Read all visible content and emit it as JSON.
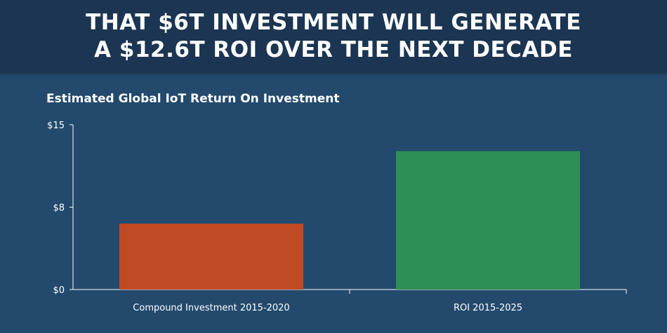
{
  "header": {
    "line1": "THAT $6T INVESTMENT WILL GENERATE",
    "line2": "A $12.6T ROI OVER THE NEXT DECADE"
  },
  "chart_data": {
    "type": "bar",
    "title": "Estimated Global IoT Return On Investment",
    "xlabel": "",
    "ylabel": "",
    "categories": [
      "Compound Investment 2015-2020",
      "ROI 2015-2025"
    ],
    "values": [
      6,
      12.6
    ],
    "bar_colors": [
      "#c04a23",
      "#2e8f54"
    ],
    "ylim": [
      0,
      15
    ],
    "yticks": [
      0,
      7.5,
      15
    ],
    "ytick_labels": [
      "$0",
      "$8",
      "$15"
    ],
    "grid": false,
    "legend": "none"
  },
  "colors": {
    "background": "#234a6d",
    "header_band": "#1b3552",
    "axis": "#ffffff"
  }
}
